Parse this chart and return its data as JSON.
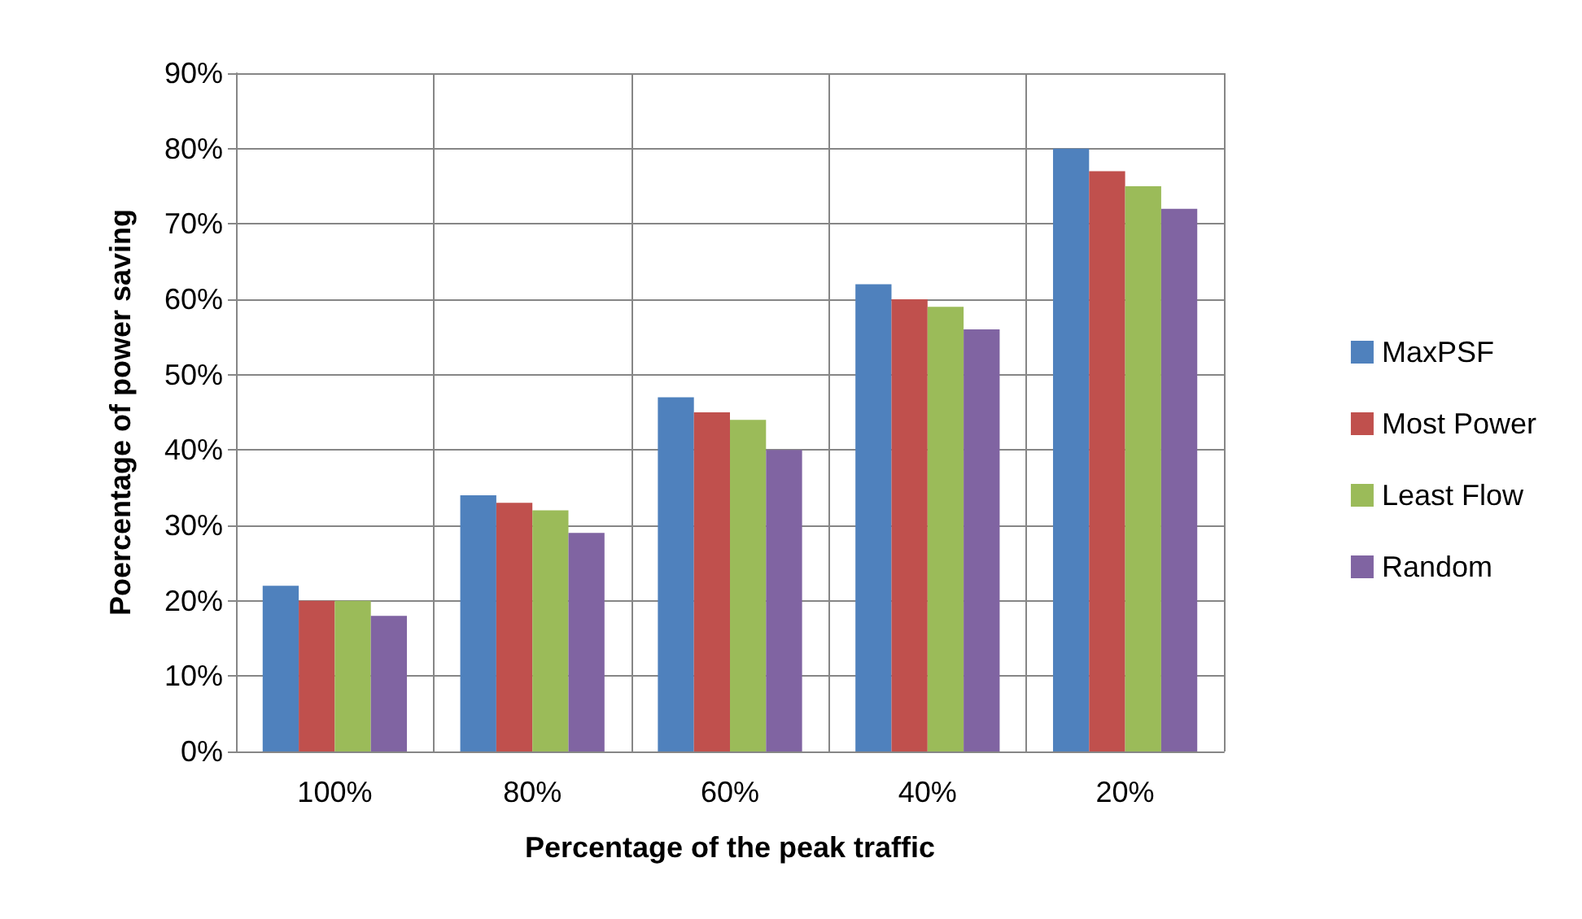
{
  "chart_data": {
    "type": "bar",
    "xlabel": "Percentage of the peak traffic",
    "ylabel": "Poercentage of power saving",
    "categories": [
      "100%",
      "80%",
      "60%",
      "40%",
      "20%"
    ],
    "series": [
      {
        "name": "MaxPSF",
        "color": "#4f81bd",
        "values": [
          22,
          34,
          47,
          62,
          80
        ]
      },
      {
        "name": "Most Power",
        "color": "#c0504d",
        "values": [
          20,
          33,
          45,
          60,
          77
        ]
      },
      {
        "name": "Least Flow",
        "color": "#9bbb59",
        "values": [
          20,
          32,
          44,
          59,
          75
        ]
      },
      {
        "name": "Random",
        "color": "#8064a2",
        "values": [
          18,
          29,
          40,
          56,
          72
        ]
      }
    ],
    "ylim": [
      0,
      90
    ],
    "yticks": [
      {
        "value": 0,
        "label": "0%"
      },
      {
        "value": 10,
        "label": "10%"
      },
      {
        "value": 20,
        "label": "20%"
      },
      {
        "value": 30,
        "label": "30%"
      },
      {
        "value": 40,
        "label": "40%"
      },
      {
        "value": 50,
        "label": "50%"
      },
      {
        "value": 60,
        "label": "60%"
      },
      {
        "value": 70,
        "label": "70%"
      },
      {
        "value": 80,
        "label": "80%"
      },
      {
        "value": 90,
        "label": "90%"
      }
    ],
    "grid": true,
    "legend": "right"
  }
}
